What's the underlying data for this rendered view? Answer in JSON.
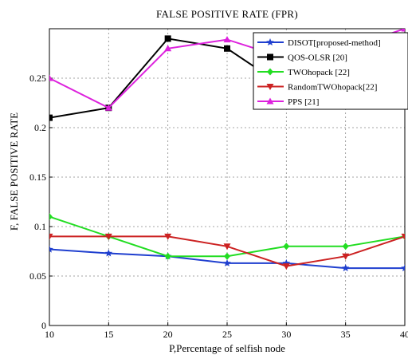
{
  "chart_data": {
    "type": "line",
    "title": "FALSE POSITIVE RATE  (FPR)",
    "xlabel": "P,Percentage of selfish node",
    "ylabel": "F, FALSE POSITIVE RATE",
    "x": [
      10,
      15,
      20,
      25,
      30,
      35,
      40
    ],
    "xlim": [
      10,
      40
    ],
    "ylim": [
      0,
      0.3
    ],
    "xticks": [
      "10",
      "15",
      "20",
      "25",
      "30",
      "35",
      "40"
    ],
    "yticks": [
      "0",
      "0.05",
      "0.1",
      "0.15",
      "0.2",
      "0.25"
    ],
    "ytick_values": [
      0,
      0.05,
      0.1,
      0.15,
      0.2,
      0.25
    ],
    "grid": true,
    "legend_position": "top-right",
    "series": [
      {
        "name": "DISOT[proposed-method]",
        "color": "#1f3fcf",
        "marker": "star",
        "values": [
          0.077,
          0.073,
          0.07,
          0.063,
          0.063,
          0.058,
          0.058
        ]
      },
      {
        "name": "QOS-OLSR  [20]",
        "color": "#000000",
        "marker": "square",
        "values": [
          0.21,
          0.22,
          0.29,
          0.28,
          0.24,
          0.25,
          0.26
        ]
      },
      {
        "name": "TWOhopack  [22]",
        "color": "#22dd22",
        "marker": "diamond",
        "values": [
          0.11,
          0.09,
          0.07,
          0.07,
          0.08,
          0.08,
          0.09
        ]
      },
      {
        "name": "RandomTWOhopack[22]",
        "color": "#cc2222",
        "marker": "triangle-down",
        "values": [
          0.09,
          0.09,
          0.09,
          0.08,
          0.06,
          0.07,
          0.09
        ]
      },
      {
        "name": "PPS  [21]",
        "color": "#dd22dd",
        "marker": "triangle-up",
        "values": [
          0.25,
          0.22,
          0.28,
          0.289,
          0.27,
          0.28,
          0.3
        ]
      }
    ]
  }
}
